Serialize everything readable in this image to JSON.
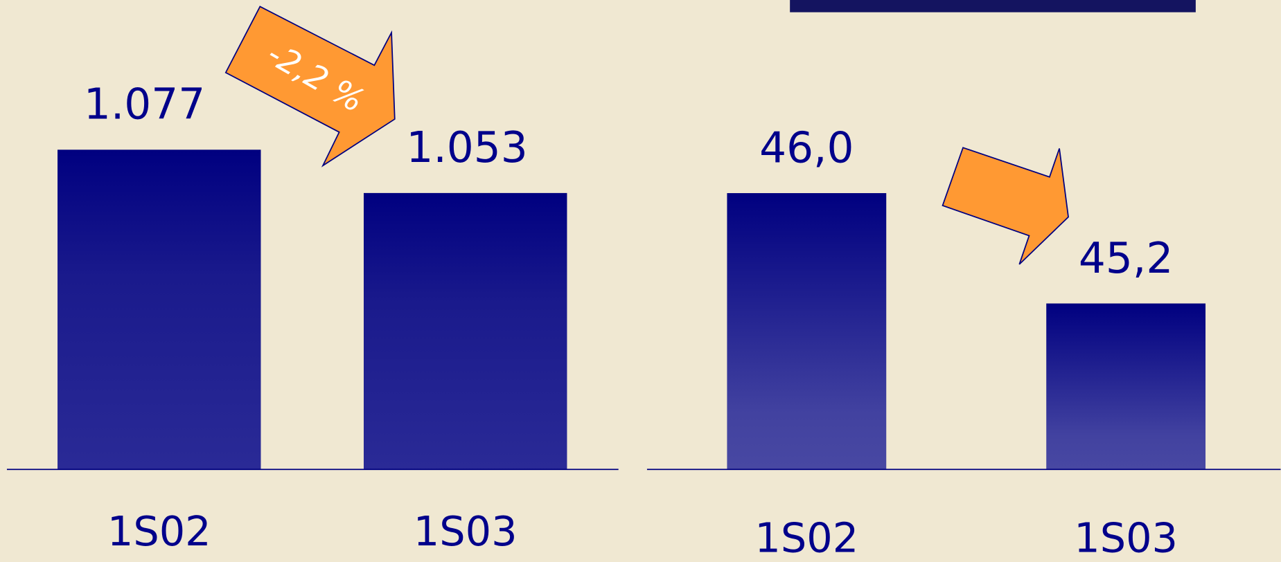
{
  "chart_data": [
    {
      "type": "bar",
      "categories": [
        "1S02",
        "1S03"
      ],
      "values": [
        1077,
        1053
      ],
      "value_labels": [
        "1.077",
        "1.053"
      ],
      "ylim": [
        900,
        1160
      ],
      "annotation": "-2,2 %",
      "color": "#000080"
    },
    {
      "type": "bar",
      "categories": [
        "1S02",
        "1S03"
      ],
      "values": [
        46.0,
        45.2
      ],
      "value_labels": [
        "46,0",
        "45,2"
      ],
      "ylim": [
        44,
        47.4
      ],
      "color": "#000080"
    }
  ]
}
